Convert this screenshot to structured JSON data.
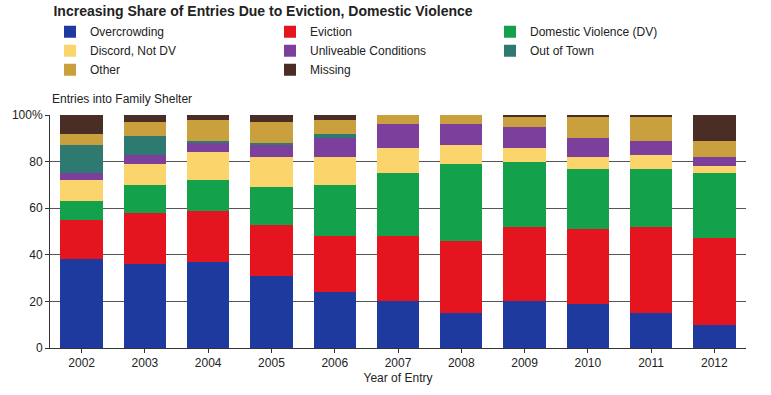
{
  "chart_data": {
    "type": "bar",
    "title": "Increasing Share of Entries Due to Eviction, Domestic Violence",
    "ylabel": "Entries into Family Shelter",
    "xlabel": "Year of Entry",
    "stacked": true,
    "grid": true,
    "legend": "top",
    "categories": [
      "2002",
      "2003",
      "2004",
      "2005",
      "2006",
      "2007",
      "2008",
      "2009",
      "2010",
      "2011",
      "2012"
    ],
    "series": [
      {
        "name": "Overcrowding",
        "color": "#1f3a9e",
        "values": [
          38,
          36,
          37,
          31,
          24,
          20,
          15,
          20,
          19,
          15,
          10
        ]
      },
      {
        "name": "Eviction",
        "color": "#e4151f",
        "values": [
          17,
          22,
          22,
          22,
          24,
          28,
          31,
          32,
          32,
          37,
          37
        ]
      },
      {
        "name": "Domestic Violence (DV)",
        "color": "#13a24b",
        "values": [
          8,
          12,
          13,
          16,
          22,
          27,
          33,
          28,
          26,
          25,
          28
        ]
      },
      {
        "name": "Discord, Not DV",
        "color": "#fbd56b",
        "values": [
          9,
          9,
          12,
          13,
          12,
          11,
          8,
          6,
          5,
          6,
          3
        ]
      },
      {
        "name": "Unliveable Conditions",
        "color": "#7c3f9c",
        "values": [
          3,
          4,
          4,
          5,
          8,
          10,
          9,
          9,
          8,
          6,
          4
        ]
      },
      {
        "name": "Out of Town",
        "color": "#2e7a70",
        "values": [
          12,
          8,
          1,
          1,
          2,
          0,
          0,
          0,
          0,
          0,
          0
        ]
      },
      {
        "name": "Other",
        "color": "#c9a03d",
        "values": [
          5,
          6,
          9,
          9,
          6,
          4,
          4,
          4,
          9,
          10,
          7
        ]
      },
      {
        "name": "Missing",
        "color": "#4a2d24",
        "values": [
          8,
          3,
          2,
          3,
          2,
          0,
          0,
          1,
          1,
          1,
          11
        ]
      }
    ],
    "ylim": [
      0,
      100
    ],
    "yticks": [
      0,
      20,
      40,
      60,
      80,
      {
        "value": 100,
        "label": "100%"
      }
    ]
  }
}
